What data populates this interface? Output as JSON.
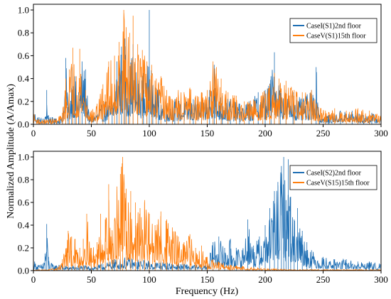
{
  "figure": {
    "xlabel": "Frequency (Hz)",
    "ylabel": "Normalized Amplitude (A/Amax)"
  },
  "chart_data": [
    {
      "type": "line",
      "xlim": [
        0,
        300
      ],
      "ylim": [
        0,
        1.05
      ],
      "xticks": [
        0,
        50,
        100,
        150,
        200,
        250,
        300
      ],
      "yticks": [
        0.0,
        0.2,
        0.4,
        0.6,
        0.8,
        1.0
      ],
      "x_tick_labels": [
        "0",
        "50",
        "100",
        "150",
        "200",
        "250",
        "300"
      ],
      "y_tick_labels": [
        "0.0",
        "0.2",
        "0.4",
        "0.6",
        "0.8",
        "1.0"
      ],
      "legend_position": "top-right",
      "series": [
        {
          "name": "CaseI(S1)2nd floor",
          "color": "#1f6fb4",
          "x": [
            0,
            5,
            10,
            11.5,
            13,
            18,
            25,
            28,
            30,
            33,
            36,
            39,
            42,
            45,
            48,
            55,
            62,
            68,
            72,
            76,
            79,
            82,
            86,
            90,
            95,
            98,
            100,
            103,
            108,
            115,
            122,
            130,
            138,
            145,
            152,
            156,
            158,
            163,
            170,
            178,
            186,
            194,
            200,
            205,
            208,
            213,
            218,
            224,
            232,
            240,
            244,
            247,
            255,
            265,
            275,
            285,
            292,
            300
          ],
          "y": [
            0.14,
            0.06,
            0.05,
            0.3,
            0.08,
            0.05,
            0.06,
            0.58,
            0.15,
            0.5,
            0.42,
            0.28,
            0.55,
            0.48,
            0.08,
            0.12,
            0.22,
            0.2,
            0.55,
            0.68,
            0.75,
            0.48,
            0.7,
            0.4,
            0.45,
            0.42,
            1.0,
            0.35,
            0.3,
            0.18,
            0.22,
            0.2,
            0.22,
            0.2,
            0.3,
            0.52,
            0.28,
            0.25,
            0.22,
            0.18,
            0.2,
            0.28,
            0.3,
            0.42,
            0.63,
            0.35,
            0.3,
            0.28,
            0.22,
            0.3,
            0.5,
            0.08,
            0.08,
            0.12,
            0.12,
            0.08,
            0.1,
            0.06
          ]
        },
        {
          "name": "CaseV(S1)15th floor",
          "color": "#ff7f0e",
          "x": [
            0,
            5,
            10,
            15,
            20,
            25,
            28,
            31,
            34,
            37,
            40,
            45,
            50,
            55,
            60,
            65,
            70,
            74,
            78,
            80,
            83,
            86,
            90,
            94,
            98,
            102,
            106,
            110,
            115,
            120,
            125,
            130,
            135,
            140,
            145,
            150,
            155,
            158,
            162,
            168,
            175,
            182,
            190,
            198,
            204,
            208,
            212,
            218,
            225,
            232,
            240,
            246,
            252,
            260,
            270,
            280,
            290,
            300
          ],
          "y": [
            0.1,
            0.04,
            0.04,
            0.05,
            0.05,
            0.1,
            0.4,
            0.48,
            0.67,
            0.42,
            0.66,
            0.3,
            0.12,
            0.18,
            0.35,
            0.55,
            0.6,
            0.72,
            1.0,
            0.85,
            0.8,
            0.95,
            0.7,
            0.65,
            0.55,
            0.52,
            0.4,
            0.42,
            0.3,
            0.22,
            0.3,
            0.28,
            0.32,
            0.25,
            0.28,
            0.3,
            0.55,
            0.5,
            0.4,
            0.28,
            0.25,
            0.2,
            0.22,
            0.28,
            0.35,
            0.45,
            0.4,
            0.38,
            0.3,
            0.28,
            0.3,
            0.15,
            0.12,
            0.14,
            0.12,
            0.14,
            0.12,
            0.08
          ]
        }
      ]
    },
    {
      "type": "line",
      "xlim": [
        0,
        300
      ],
      "ylim": [
        0,
        1.05
      ],
      "xticks": [
        0,
        50,
        100,
        150,
        200,
        250,
        300
      ],
      "yticks": [
        0.0,
        0.2,
        0.4,
        0.6,
        0.8,
        1.0
      ],
      "x_tick_labels": [
        "0",
        "50",
        "100",
        "150",
        "200",
        "250",
        "300"
      ],
      "y_tick_labels": [
        "0.0",
        "0.2",
        "0.4",
        "0.6",
        "0.8",
        "1.0"
      ],
      "legend_position": "top-right",
      "series": [
        {
          "name": "CaseI(S2)2nd floor",
          "color": "#1f6fb4",
          "x": [
            0,
            4,
            8,
            10,
            11.5,
            13,
            16,
            22,
            30,
            40,
            50,
            60,
            70,
            80,
            90,
            100,
            110,
            120,
            130,
            140,
            150,
            155,
            160,
            165,
            170,
            175,
            180,
            185,
            190,
            195,
            200,
            204,
            208,
            211,
            214,
            216,
            218,
            220,
            222,
            225,
            228,
            232,
            236,
            240,
            250,
            260,
            270,
            280,
            290,
            300
          ],
          "y": [
            0.1,
            0.05,
            0.06,
            0.15,
            0.41,
            0.12,
            0.06,
            0.05,
            0.04,
            0.05,
            0.04,
            0.06,
            0.1,
            0.12,
            0.1,
            0.09,
            0.08,
            0.07,
            0.06,
            0.05,
            0.06,
            0.25,
            0.3,
            0.2,
            0.28,
            0.2,
            0.18,
            0.45,
            0.22,
            0.3,
            0.4,
            0.55,
            0.7,
            0.78,
            0.92,
            1.0,
            0.62,
            0.98,
            0.65,
            0.45,
            0.55,
            0.35,
            0.25,
            0.18,
            0.12,
            0.1,
            0.1,
            0.08,
            0.08,
            0.06
          ]
        },
        {
          "name": "CaseV(S15)15th floor",
          "color": "#ff7f0e",
          "x": [
            0,
            10,
            20,
            25,
            30,
            33,
            36,
            40,
            43,
            46,
            50,
            55,
            58,
            62,
            65,
            68,
            72,
            75,
            77,
            80,
            84,
            88,
            92,
            96,
            100,
            105,
            110,
            115,
            120,
            125,
            130,
            135,
            140,
            145,
            150,
            155,
            160,
            170,
            180,
            190,
            200,
            210,
            220,
            230
          ],
          "y": [
            0.01,
            0.01,
            0.02,
            0.1,
            0.35,
            0.3,
            0.28,
            0.2,
            0.28,
            0.5,
            0.2,
            0.25,
            0.5,
            0.45,
            0.76,
            0.35,
            0.74,
            0.85,
            1.0,
            0.72,
            0.7,
            0.6,
            0.55,
            0.62,
            0.5,
            0.4,
            0.52,
            0.45,
            0.38,
            0.3,
            0.25,
            0.32,
            0.2,
            0.22,
            0.12,
            0.1,
            0.08,
            0.05,
            0.04,
            0.03,
            0.02,
            0.02,
            0.01,
            0.01
          ]
        }
      ]
    }
  ]
}
